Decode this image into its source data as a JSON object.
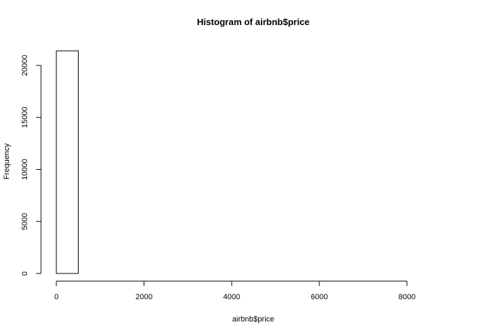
{
  "chart_data": {
    "type": "bar",
    "title": "Histogram of airbnb$price",
    "xlabel": "airbnb$price",
    "ylabel": "Frequency",
    "xlim": [
      0,
      9000
    ],
    "ylim": [
      0,
      21500
    ],
    "x_ticks": [
      0,
      2000,
      4000,
      6000,
      8000
    ],
    "y_ticks": [
      0,
      5000,
      10000,
      15000,
      20000
    ],
    "bins": [
      {
        "start": 0,
        "end": 500,
        "count": 21400
      },
      {
        "start": 500,
        "end": 1000,
        "count": 0
      },
      {
        "start": 1000,
        "end": 1500,
        "count": 0
      },
      {
        "start": 1500,
        "end": 2000,
        "count": 0
      },
      {
        "start": 2000,
        "end": 2500,
        "count": 0
      },
      {
        "start": 2500,
        "end": 3000,
        "count": 0
      },
      {
        "start": 3000,
        "end": 3500,
        "count": 0
      },
      {
        "start": 3500,
        "end": 4000,
        "count": 0
      },
      {
        "start": 4000,
        "end": 4500,
        "count": 0
      },
      {
        "start": 4500,
        "end": 5000,
        "count": 0
      },
      {
        "start": 5000,
        "end": 5500,
        "count": 0
      },
      {
        "start": 5500,
        "end": 6000,
        "count": 0
      },
      {
        "start": 6000,
        "end": 6500,
        "count": 0
      },
      {
        "start": 6500,
        "end": 7000,
        "count": 0
      },
      {
        "start": 7000,
        "end": 7500,
        "count": 0
      },
      {
        "start": 7500,
        "end": 8000,
        "count": 0
      },
      {
        "start": 8000,
        "end": 8500,
        "count": 0
      },
      {
        "start": 8500,
        "end": 9000,
        "count": 0
      }
    ],
    "bar_fill": "#ffffff",
    "bar_stroke": "#000000",
    "grid": false
  }
}
